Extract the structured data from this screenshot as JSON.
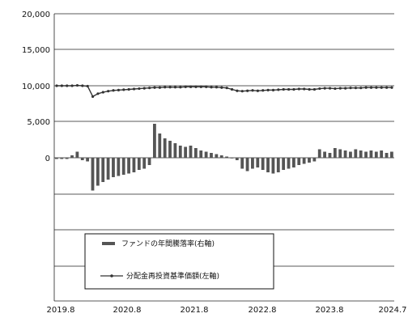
{
  "chart_data": {
    "type": "bar+line",
    "x_labels": [
      "2019.8",
      "2020.8",
      "2021.8",
      "2022.8",
      "2023.8",
      "2024.7"
    ],
    "y_left_ticks": [
      "20,000",
      "15,000",
      "10,000",
      "5,000",
      "0"
    ],
    "y_left_range": [
      0,
      20000
    ],
    "grid": true,
    "legend_position": "bottom-left",
    "series": [
      {
        "name": "ファンドの年間騰落率(右軸)",
        "type": "bar",
        "color": "#555555",
        "values": [
          -0.1,
          -0.1,
          -0.1,
          0.2,
          0.5,
          -0.2,
          -0.3,
          -2.7,
          -2.3,
          -2.0,
          -1.8,
          -1.6,
          -1.5,
          -1.4,
          -1.3,
          -1.2,
          -1.0,
          -0.9,
          -0.6,
          2.8,
          2.0,
          1.6,
          1.4,
          1.2,
          1.0,
          0.9,
          1.0,
          0.8,
          0.6,
          0.5,
          0.4,
          0.3,
          0.2,
          0.1,
          0.0,
          -0.2,
          -0.9,
          -1.1,
          -0.9,
          -0.8,
          -1.0,
          -1.2,
          -1.3,
          -1.2,
          -1.0,
          -0.9,
          -0.8,
          -0.6,
          -0.5,
          -0.4,
          -0.3,
          0.7,
          0.5,
          0.4,
          0.8,
          0.7,
          0.6,
          0.5,
          0.7,
          0.6,
          0.5,
          0.6,
          0.5,
          0.6,
          0.4,
          0.5
        ]
      },
      {
        "name": "分配金再投資基準価額(左軸)",
        "type": "line",
        "color": "#333333",
        "values": [
          10000,
          10000,
          10000,
          10000,
          10050,
          10000,
          9950,
          8500,
          8900,
          9100,
          9250,
          9350,
          9400,
          9450,
          9500,
          9550,
          9600,
          9650,
          9700,
          9750,
          9750,
          9800,
          9800,
          9800,
          9800,
          9850,
          9850,
          9850,
          9850,
          9850,
          9800,
          9800,
          9750,
          9700,
          9500,
          9300,
          9250,
          9300,
          9350,
          9300,
          9350,
          9400,
          9400,
          9450,
          9500,
          9500,
          9500,
          9550,
          9550,
          9500,
          9500,
          9600,
          9650,
          9650,
          9600,
          9650,
          9650,
          9700,
          9700,
          9700,
          9750,
          9750,
          9750,
          9750,
          9750,
          9750
        ]
      }
    ]
  }
}
